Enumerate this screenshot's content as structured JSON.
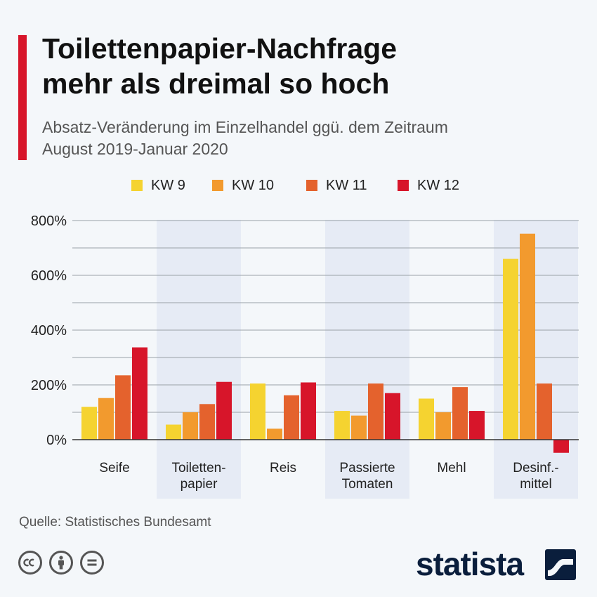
{
  "title_lines": [
    "Toilettenpapier-Nachfrage",
    "mehr als dreimal so hoch"
  ],
  "subtitle_lines": [
    "Absatz-Veränderung im Einzelhandel ggü. dem Zeitraum",
    "August 2019-Januar 2020"
  ],
  "source": "Quelle: Statistisches Bundesamt",
  "brand": "statista",
  "colors": {
    "accent": "#d7152a",
    "band": "#e6ebf5",
    "grid": "#9aa0a8",
    "axis": "#333333"
  },
  "icons": [
    "cc-icon",
    "by-icon",
    "nd-icon",
    "statista-logo-icon"
  ],
  "chart_data": {
    "type": "bar",
    "categories": [
      [
        "Seife"
      ],
      [
        "Toiletten-",
        "papier"
      ],
      [
        "Reis"
      ],
      [
        "Passierte",
        "Tomaten"
      ],
      [
        "Mehl"
      ],
      [
        "Desinf.-",
        "mittel"
      ]
    ],
    "series": [
      {
        "name": "KW 9",
        "color": "#f5d330",
        "values": [
          120,
          55,
          205,
          105,
          150,
          660
        ]
      },
      {
        "name": "KW 10",
        "color": "#f29a2e",
        "values": [
          152,
          100,
          40,
          88,
          100,
          752
        ]
      },
      {
        "name": "KW 11",
        "color": "#e4622d",
        "values": [
          235,
          130,
          162,
          205,
          192,
          205
        ]
      },
      {
        "name": "KW 12",
        "color": "#d7152a",
        "values": [
          337,
          211,
          209,
          170,
          105,
          -48
        ]
      }
    ],
    "yticks": [
      0,
      200,
      400,
      600,
      800
    ],
    "ytick_labels": [
      "0%",
      "200%",
      "400%",
      "600%",
      "800%"
    ],
    "ylim": [
      -50,
      800
    ],
    "grid": true,
    "legend": "top-center"
  }
}
